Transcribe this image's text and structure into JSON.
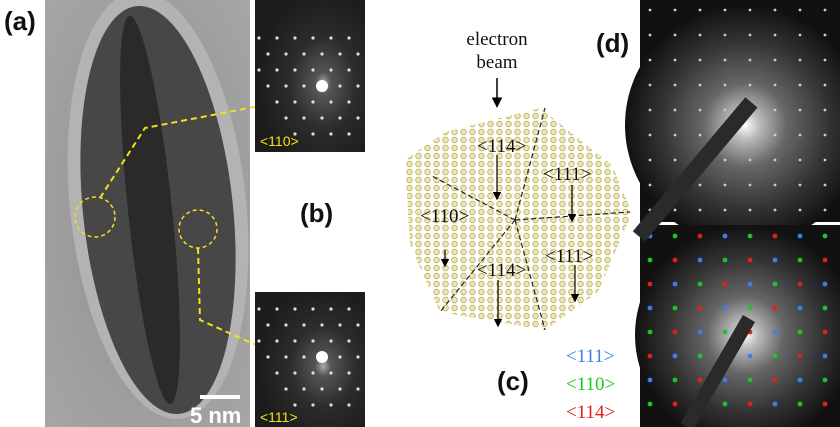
{
  "panels": {
    "a": {
      "label": "(a)",
      "scale_bar": "5 nm"
    },
    "b": {
      "label": "(b)",
      "fft_top": "<110>",
      "fft_bottom": "<111>"
    },
    "c": {
      "label": "(c)",
      "beam": [
        "electron",
        "beam"
      ],
      "zones": [
        "<114>",
        "<111>",
        "<110>",
        "<114>",
        "<111>"
      ],
      "legend": [
        "<111>",
        "<110>",
        "<114>"
      ]
    },
    "d": {
      "label": "(d)"
    }
  }
}
